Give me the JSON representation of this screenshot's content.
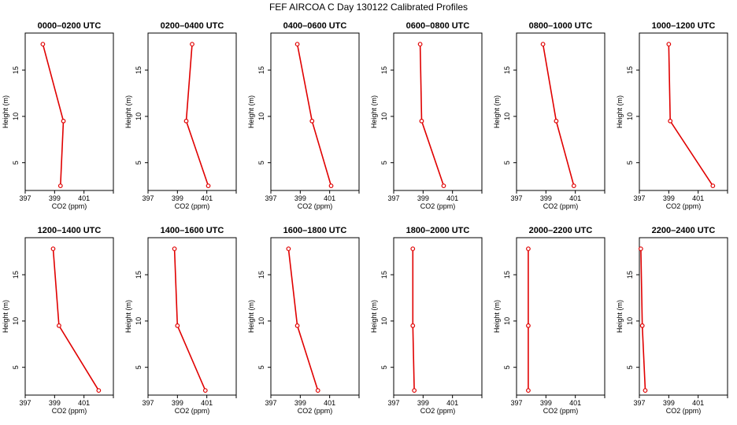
{
  "title": "FEF AIRCOA C  Day 130122  Calibrated Profiles",
  "chart_data": {
    "type": "line",
    "xlabel": "CO2 (ppm)",
    "ylabel": "Height (m)",
    "xlim": [
      397,
      403
    ],
    "ylim": [
      2,
      19
    ],
    "xticks": [
      "397",
      "399",
      "401"
    ],
    "yticks": [
      "5",
      "10",
      "15"
    ],
    "line_color": "#e00000",
    "panels": [
      {
        "title": "0000–0200 UTC",
        "x": [
          398.2,
          399.6,
          399.4
        ],
        "y": [
          17.8,
          9.5,
          2.5
        ]
      },
      {
        "title": "0200–0400 UTC",
        "x": [
          400.0,
          399.6,
          401.1
        ],
        "y": [
          17.8,
          9.5,
          2.5
        ]
      },
      {
        "title": "0400–0600 UTC",
        "x": [
          398.8,
          399.8,
          401.1
        ],
        "y": [
          17.8,
          9.5,
          2.5
        ]
      },
      {
        "title": "0600–0800 UTC",
        "x": [
          398.8,
          398.9,
          400.4
        ],
        "y": [
          17.8,
          9.5,
          2.5
        ]
      },
      {
        "title": "0800–1000 UTC",
        "x": [
          398.8,
          399.7,
          400.9
        ],
        "y": [
          17.8,
          9.5,
          2.5
        ]
      },
      {
        "title": "1000–1200 UTC",
        "x": [
          399.0,
          399.1,
          402.0
        ],
        "y": [
          17.8,
          9.5,
          2.5
        ]
      },
      {
        "title": "1200–1400 UTC",
        "x": [
          398.9,
          399.3,
          402.0
        ],
        "y": [
          17.8,
          9.5,
          2.5
        ]
      },
      {
        "title": "1400–1600 UTC",
        "x": [
          398.8,
          399.0,
          400.9
        ],
        "y": [
          17.8,
          9.5,
          2.5
        ]
      },
      {
        "title": "1600–1800 UTC",
        "x": [
          398.2,
          398.8,
          400.2
        ],
        "y": [
          17.8,
          9.5,
          2.5
        ]
      },
      {
        "title": "1800–2000 UTC",
        "x": [
          398.3,
          398.3,
          398.4
        ],
        "y": [
          17.8,
          9.5,
          2.5
        ]
      },
      {
        "title": "2000–2200 UTC",
        "x": [
          397.8,
          397.8,
          397.8
        ],
        "y": [
          17.8,
          9.5,
          2.5
        ]
      },
      {
        "title": "2200–2400 UTC",
        "x": [
          397.1,
          397.2,
          397.4
        ],
        "y": [
          17.8,
          9.5,
          2.5
        ]
      }
    ]
  }
}
